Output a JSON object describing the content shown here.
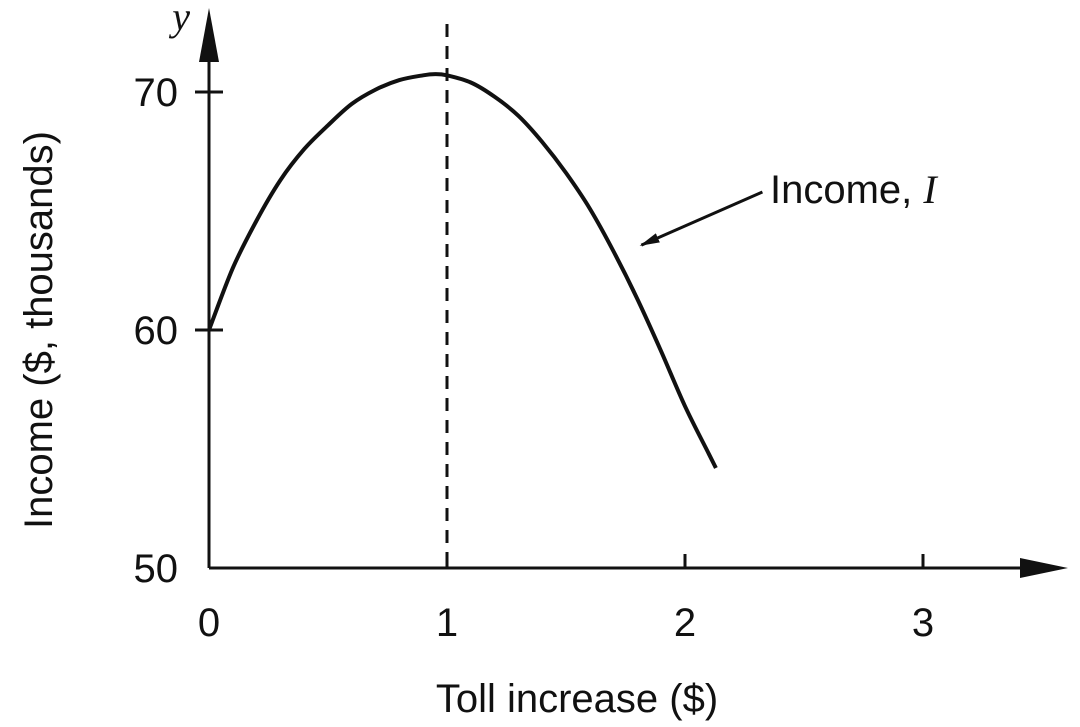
{
  "chart_data": {
    "type": "line",
    "title": "",
    "xlabel": "Toll increase ($)",
    "ylabel": "Income ($, thousands)",
    "y_axis_variable": "y",
    "xlim": [
      0,
      3.5
    ],
    "ylim": [
      50,
      72
    ],
    "x_ticks": [
      0,
      1,
      2,
      3
    ],
    "y_ticks": [
      50,
      60,
      70
    ],
    "x_tick_labels": [
      "0",
      "1",
      "2",
      "3"
    ],
    "y_tick_labels": [
      "50",
      "60",
      "70"
    ],
    "grid": false,
    "series": [
      {
        "name": "Income, I",
        "label_prefix": "Income, ",
        "label_var": "I",
        "x": [
          0,
          0.1,
          0.2,
          0.3,
          0.4,
          0.5,
          0.6,
          0.7,
          0.8,
          0.9,
          0.95,
          1.0,
          1.1,
          1.2,
          1.3,
          1.4,
          1.5,
          1.6,
          1.7,
          1.8,
          1.9,
          2.0,
          2.1,
          2.13
        ],
        "y": [
          60.0,
          62.6,
          64.6,
          66.3,
          67.6,
          68.6,
          69.5,
          70.1,
          70.5,
          70.7,
          70.75,
          70.7,
          70.4,
          69.8,
          69.0,
          67.9,
          66.6,
          65.1,
          63.3,
          61.3,
          59.1,
          56.8,
          54.8,
          54.2
        ]
      }
    ],
    "reference_lines": [
      {
        "orientation": "vertical",
        "x": 1,
        "style": "dashed"
      }
    ],
    "annotation": {
      "target_x": 1.8,
      "target_y": 63.4,
      "text_anchor_x": 2.3,
      "text_anchor_y": 65.8
    },
    "colors": {
      "line": "#111111",
      "axis": "#111111"
    }
  }
}
